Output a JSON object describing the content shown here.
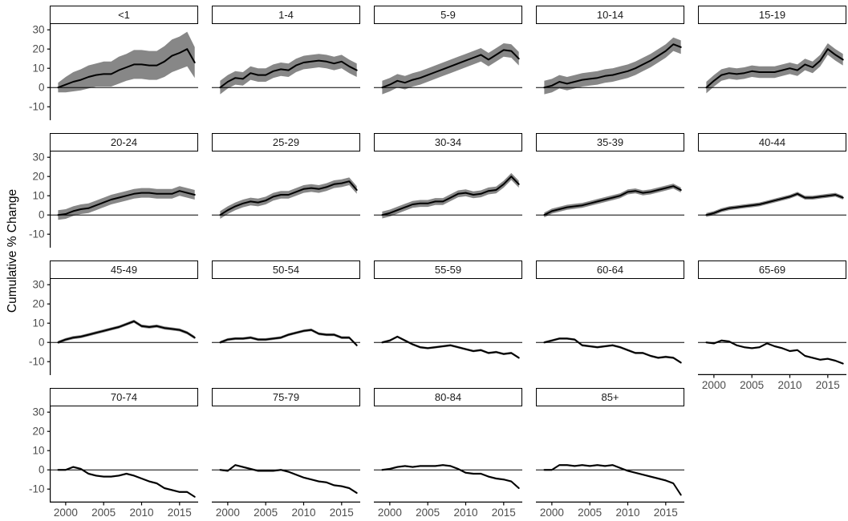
{
  "chart_data": {
    "type": "line",
    "title": "",
    "xlabel": "",
    "ylabel": "Cumulative % Change",
    "x": [
      1999,
      2000,
      2001,
      2002,
      2003,
      2004,
      2005,
      2006,
      2007,
      2008,
      2009,
      2010,
      2011,
      2012,
      2013,
      2014,
      2015,
      2016,
      2017
    ],
    "x_ticks": [
      2000,
      2005,
      2010,
      2015
    ],
    "y_ticks": [
      30,
      20,
      10,
      0,
      -10
    ],
    "xlim": [
      1997.9,
      2017.45
    ],
    "ylim": [
      -17,
      33
    ],
    "grid": "off",
    "legend": "none",
    "zero_line": 0,
    "colors": {
      "line": "#000000",
      "ribbon": "#878787",
      "tick_text": "#4d4d4d",
      "axis_line": "#000000",
      "strip_border": "#000000",
      "strip_fill": "#ffffff"
    },
    "facets": [
      {
        "label": "<1",
        "values": [
          0,
          1.5,
          3,
          4,
          5.5,
          6.5,
          7,
          7,
          9,
          10.5,
          12,
          12,
          11.5,
          11.5,
          13.5,
          16.5,
          18,
          20,
          13
        ],
        "band": [
          2.5,
          4,
          5,
          5.5,
          6,
          6,
          6.5,
          6.5,
          7,
          7,
          7.5,
          7.5,
          7.5,
          7.5,
          8,
          8.5,
          8.5,
          9,
          8
        ]
      },
      {
        "label": "1-4",
        "values": [
          0,
          3,
          5,
          4.5,
          7.5,
          6.5,
          6.5,
          8.5,
          9.5,
          9,
          11.5,
          13,
          13.5,
          14,
          13.5,
          12.5,
          13.5,
          11,
          9
        ],
        "band": 3.5
      },
      {
        "label": "5-9",
        "values": [
          0,
          1.5,
          3.5,
          2.5,
          4,
          5,
          6.5,
          8,
          9.5,
          11,
          12.5,
          14,
          15.5,
          17,
          14.5,
          17,
          19.5,
          19,
          15
        ],
        "band": 3.5
      },
      {
        "label": "10-14",
        "values": [
          0,
          1,
          3,
          2,
          3,
          4,
          4.5,
          5,
          6,
          6.5,
          7.5,
          8.5,
          10,
          12,
          14,
          16.5,
          19,
          22.5,
          21
        ],
        "band": 3.5
      },
      {
        "label": "15-19",
        "values": [
          0,
          3.5,
          6.5,
          7.5,
          7,
          7.5,
          8.5,
          8,
          8,
          8,
          9,
          10,
          9,
          12,
          10.5,
          14,
          20,
          17,
          14.5
        ],
        "band": 3
      },
      {
        "label": "20-24",
        "values": [
          0,
          0.5,
          2,
          3,
          3.5,
          5,
          6.5,
          8,
          9,
          10,
          11,
          11.5,
          11.5,
          11,
          11,
          11,
          12.5,
          11.5,
          10.5
        ],
        "band": 2.5
      },
      {
        "label": "25-29",
        "values": [
          0,
          2.5,
          4.5,
          6,
          7,
          6.5,
          7.5,
          9.5,
          10.5,
          10.5,
          12,
          13.5,
          14,
          13.5,
          14.5,
          16,
          16.5,
          17.5,
          13
        ],
        "band": 2
      },
      {
        "label": "30-34",
        "values": [
          0,
          1,
          2.5,
          4,
          5.5,
          6,
          6,
          7,
          7,
          9,
          11,
          11.5,
          10.5,
          11,
          12.5,
          13,
          16,
          20,
          16
        ],
        "band": 1.8
      },
      {
        "label": "35-39",
        "values": [
          0,
          2,
          3,
          4,
          4.5,
          5,
          6,
          7,
          8,
          9,
          10,
          12,
          12.5,
          11.5,
          12,
          13,
          14,
          15,
          13
        ],
        "band": 1.3
      },
      {
        "label": "40-44",
        "values": [
          0,
          1,
          2.5,
          3.5,
          4,
          4.5,
          5,
          5.5,
          6.5,
          7.5,
          8.5,
          9.5,
          11,
          9,
          9,
          9.5,
          10,
          10.5,
          9
        ],
        "band": 1
      },
      {
        "label": "45-49",
        "values": [
          0,
          1.5,
          2.5,
          3,
          4,
          5,
          6,
          7,
          8,
          9.5,
          11,
          8.5,
          8,
          8.5,
          7.5,
          7,
          6.5,
          5,
          2.5
        ],
        "band": 0.8
      },
      {
        "label": "50-54",
        "values": [
          0,
          1.5,
          2,
          2,
          2.5,
          1.5,
          1.5,
          2,
          2.5,
          4,
          5,
          6,
          6.5,
          4.5,
          4,
          4,
          2.5,
          2.5,
          -1.5
        ],
        "band": 0.7
      },
      {
        "label": "55-59",
        "values": [
          0,
          1,
          3,
          1,
          -1,
          -2.5,
          -3,
          -2.5,
          -2,
          -1.5,
          -2.5,
          -3.5,
          -4.5,
          -4,
          -5.5,
          -5,
          -6,
          -5.5,
          -8
        ],
        "band": 0.6
      },
      {
        "label": "60-64",
        "values": [
          0,
          1,
          2,
          2,
          1.5,
          -1.5,
          -2,
          -2.5,
          -2,
          -1.5,
          -2.5,
          -4,
          -5.5,
          -5.5,
          -7,
          -8,
          -7.5,
          -8,
          -10.5
        ],
        "band": 0.6
      },
      {
        "label": "65-69",
        "values": [
          0,
          -0.5,
          1,
          0.5,
          -1.5,
          -2.5,
          -3,
          -2.5,
          -0.5,
          -2,
          -3,
          -4.5,
          -4,
          -7,
          -8,
          -9,
          -8.5,
          -9.5,
          -11
        ],
        "band": 0.5
      },
      {
        "label": "70-74",
        "values": [
          0,
          0,
          1.5,
          0.5,
          -2,
          -3,
          -3.5,
          -3.5,
          -3,
          -2,
          -3,
          -4.5,
          -6,
          -7,
          -9.5,
          -10.5,
          -11.5,
          -11.5,
          -14
        ],
        "band": 0.5
      },
      {
        "label": "75-79",
        "values": [
          0,
          -0.5,
          2.5,
          1.5,
          0.5,
          -0.5,
          -0.5,
          -0.5,
          0,
          -1,
          -2.5,
          -4,
          -5,
          -6,
          -6.5,
          -8,
          -8.5,
          -9.5,
          -12
        ],
        "band": 0.5
      },
      {
        "label": "80-84",
        "values": [
          0,
          0.5,
          1.5,
          2,
          1.5,
          2,
          2,
          2,
          2.5,
          2,
          0.5,
          -1.5,
          -2,
          -2,
          -3.5,
          -4.5,
          -5,
          -6,
          -9.5
        ],
        "band": 0.5
      },
      {
        "label": "85+",
        "values": [
          0,
          0,
          2.5,
          2.5,
          2,
          2.5,
          2,
          2.5,
          2,
          2.5,
          1,
          -0.5,
          -1.5,
          -2.5,
          -3.5,
          -4.5,
          -5.5,
          -7,
          -13
        ],
        "band": 0.5
      }
    ],
    "y_axis_facets": [
      0,
      5,
      10,
      15
    ],
    "x_axis_facets": [
      14,
      15,
      16,
      17,
      18
    ]
  }
}
